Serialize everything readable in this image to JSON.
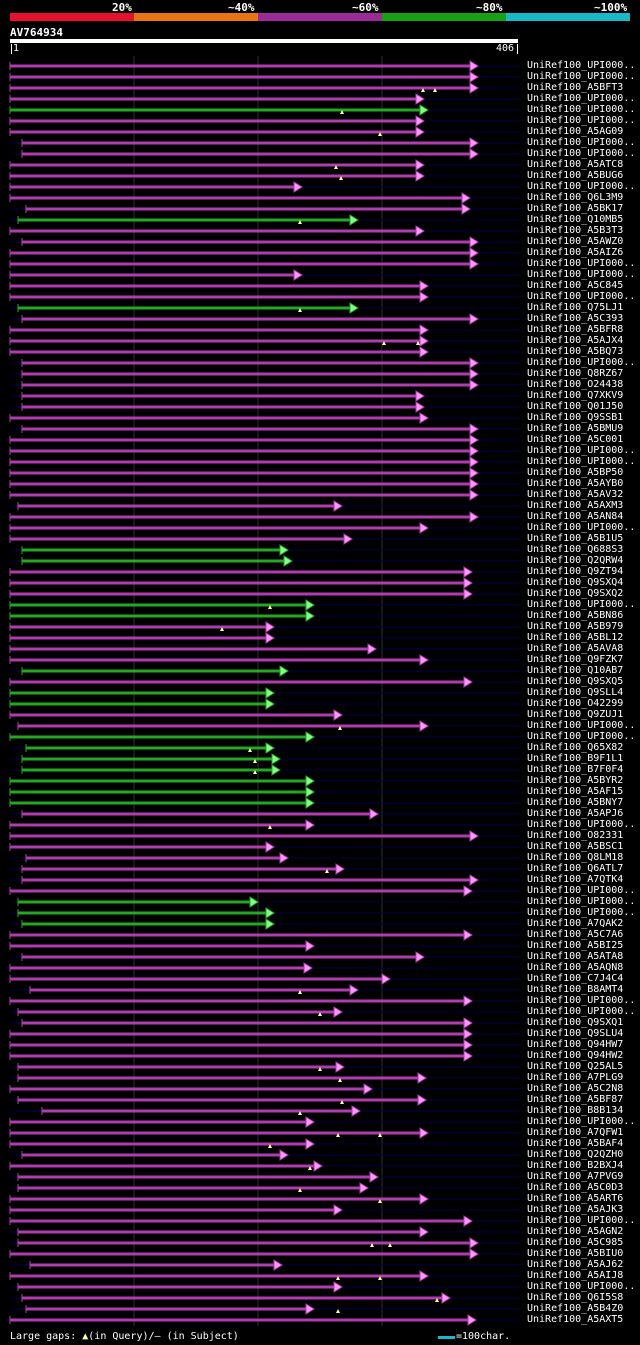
{
  "colors": {
    "background": "#000000",
    "legend": [
      "#e8112d",
      "#e87412",
      "#9b2b96",
      "#18a015",
      "#18b8c8"
    ],
    "hit_magenta": "#b03cb0",
    "hit_green": "#22a822",
    "gap": "#00004a",
    "grid": "#303030",
    "marker": "#ffff99"
  },
  "legend": {
    "pct_labels": [
      "20%",
      "~40%",
      "~60%",
      "~80%",
      "~100%"
    ]
  },
  "query": {
    "name": "AV764934",
    "start": "1",
    "end": "406"
  },
  "hits": [
    {
      "label": "UniRef100_UPI000..",
      "s": 10,
      "e": 478,
      "c": "m",
      "k": []
    },
    {
      "label": "UniRef100_UPI000..",
      "s": 10,
      "e": 478,
      "c": "m",
      "k": []
    },
    {
      "label": "UniRef100_A5BFT3",
      "s": 10,
      "e": 478,
      "c": "m",
      "k": [
        423,
        435
      ]
    },
    {
      "label": "UniRef100_UPI000..",
      "s": 10,
      "e": 424,
      "c": "m",
      "k": []
    },
    {
      "label": "UniRef100_UPI000..",
      "s": 10,
      "e": 428,
      "c": "g",
      "k": [
        342
      ]
    },
    {
      "label": "UniRef100_UPI000..",
      "s": 10,
      "e": 424,
      "c": "m",
      "k": []
    },
    {
      "label": "UniRef100_A5AG09",
      "s": 10,
      "e": 424,
      "c": "m",
      "k": [
        380
      ]
    },
    {
      "label": "UniRef100_UPI000..",
      "s": 22,
      "e": 478,
      "c": "m",
      "k": []
    },
    {
      "label": "UniRef100_UPI000..",
      "s": 22,
      "e": 478,
      "c": "m",
      "k": []
    },
    {
      "label": "UniRef100_A5ATC8",
      "s": 10,
      "e": 424,
      "c": "m",
      "k": [
        336
      ]
    },
    {
      "label": "UniRef100_A5BUG6",
      "s": 10,
      "e": 424,
      "c": "m",
      "k": [
        341
      ]
    },
    {
      "label": "UniRef100_UPI000..",
      "s": 10,
      "e": 302,
      "c": "m",
      "k": []
    },
    {
      "label": "UniRef100_Q6L3M9",
      "s": 10,
      "e": 470,
      "c": "m",
      "k": []
    },
    {
      "label": "UniRef100_A5BK17",
      "s": 26,
      "e": 470,
      "c": "m",
      "k": []
    },
    {
      "label": "UniRef100_Q10MB5",
      "s": 18,
      "e": 358,
      "c": "g",
      "k": [
        300
      ]
    },
    {
      "label": "UniRef100_A5B3T3",
      "s": 10,
      "e": 424,
      "c": "m",
      "k": []
    },
    {
      "label": "UniRef100_A5AWZ0",
      "s": 22,
      "e": 478,
      "c": "m",
      "k": []
    },
    {
      "label": "UniRef100_A5AIZ6",
      "s": 10,
      "e": 478,
      "c": "m",
      "k": []
    },
    {
      "label": "UniRef100_UPI000..",
      "s": 10,
      "e": 478,
      "c": "m",
      "k": []
    },
    {
      "label": "UniRef100_UPI000..",
      "s": 10,
      "e": 302,
      "c": "m",
      "k": []
    },
    {
      "label": "UniRef100_A5C845",
      "s": 10,
      "e": 428,
      "c": "m",
      "k": []
    },
    {
      "label": "UniRef100_UPI000..",
      "s": 10,
      "e": 428,
      "c": "m",
      "k": []
    },
    {
      "label": "UniRef100_Q75LJ1",
      "s": 18,
      "e": 358,
      "c": "g",
      "k": [
        300
      ]
    },
    {
      "label": "UniRef100_A5C393",
      "s": 22,
      "e": 478,
      "c": "m",
      "k": []
    },
    {
      "label": "UniRef100_A5BFR8",
      "s": 10,
      "e": 428,
      "c": "m",
      "k": []
    },
    {
      "label": "UniRef100_A5AJX4",
      "s": 10,
      "e": 428,
      "c": "m",
      "k": [
        384,
        418
      ]
    },
    {
      "label": "UniRef100_A5BQ73",
      "s": 10,
      "e": 428,
      "c": "m",
      "k": []
    },
    {
      "label": "UniRef100_UPI000..",
      "s": 22,
      "e": 478,
      "c": "m",
      "k": []
    },
    {
      "label": "UniRef100_Q8RZ67",
      "s": 22,
      "e": 478,
      "c": "m",
      "k": []
    },
    {
      "label": "UniRef100_O24438",
      "s": 22,
      "e": 478,
      "c": "m",
      "k": []
    },
    {
      "label": "UniRef100_Q7XKV9",
      "s": 22,
      "e": 424,
      "c": "m",
      "k": []
    },
    {
      "label": "UniRef100_Q01J50",
      "s": 22,
      "e": 424,
      "c": "m",
      "k": []
    },
    {
      "label": "UniRef100_Q9SSB1",
      "s": 10,
      "e": 428,
      "c": "m",
      "k": []
    },
    {
      "label": "UniRef100_A5BMU9",
      "s": 22,
      "e": 478,
      "c": "m",
      "k": []
    },
    {
      "label": "UniRef100_A5C001",
      "s": 10,
      "e": 478,
      "c": "m",
      "k": []
    },
    {
      "label": "UniRef100_UPI000..",
      "s": 10,
      "e": 478,
      "c": "m",
      "k": []
    },
    {
      "label": "UniRef100_UPI000..",
      "s": 10,
      "e": 478,
      "c": "m",
      "k": []
    },
    {
      "label": "UniRef100_A5BP50",
      "s": 10,
      "e": 478,
      "c": "m",
      "k": []
    },
    {
      "label": "UniRef100_A5AYB0",
      "s": 10,
      "e": 478,
      "c": "m",
      "k": []
    },
    {
      "label": "UniRef100_A5AV32",
      "s": 10,
      "e": 478,
      "c": "m",
      "k": []
    },
    {
      "label": "UniRef100_A5AXM3",
      "s": 18,
      "e": 342,
      "c": "m",
      "k": []
    },
    {
      "label": "UniRef100_A5AN84",
      "s": 10,
      "e": 478,
      "c": "m",
      "k": []
    },
    {
      "label": "UniRef100_UPI000..",
      "s": 10,
      "e": 428,
      "c": "m",
      "k": []
    },
    {
      "label": "UniRef100_A5B1U5",
      "s": 10,
      "e": 352,
      "c": "m",
      "k": []
    },
    {
      "label": "UniRef100_Q688S3",
      "s": 22,
      "e": 288,
      "c": "g",
      "k": []
    },
    {
      "label": "UniRef100_Q2QRW4",
      "s": 22,
      "e": 292,
      "c": "g",
      "k": []
    },
    {
      "label": "UniRef100_Q9ZT94",
      "s": 10,
      "e": 472,
      "c": "m",
      "k": []
    },
    {
      "label": "UniRef100_Q9SXQ4",
      "s": 10,
      "e": 472,
      "c": "m",
      "k": []
    },
    {
      "label": "UniRef100_Q9SXQ2",
      "s": 10,
      "e": 472,
      "c": "m",
      "k": []
    },
    {
      "label": "UniRef100_UPI000..",
      "s": 10,
      "e": 314,
      "c": "g",
      "k": [
        270
      ]
    },
    {
      "label": "UniRef100_A5BN86",
      "s": 10,
      "e": 314,
      "c": "g",
      "k": []
    },
    {
      "label": "UniRef100_A5B979",
      "s": 10,
      "e": 274,
      "c": "m",
      "k": [
        222
      ]
    },
    {
      "label": "UniRef100_A5BL12",
      "s": 10,
      "e": 274,
      "c": "m",
      "k": []
    },
    {
      "label": "UniRef100_A5AVA8",
      "s": 10,
      "e": 376,
      "c": "m",
      "k": []
    },
    {
      "label": "UniRef100_Q9FZK7",
      "s": 10,
      "e": 428,
      "c": "m",
      "k": []
    },
    {
      "label": "UniRef100_Q10AB7",
      "s": 22,
      "e": 288,
      "c": "g",
      "k": []
    },
    {
      "label": "UniRef100_Q9SXQ5",
      "s": 10,
      "e": 472,
      "c": "m",
      "k": []
    },
    {
      "label": "UniRef100_Q9SLL4",
      "s": 10,
      "e": 274,
      "c": "g",
      "k": []
    },
    {
      "label": "UniRef100_O42299",
      "s": 10,
      "e": 274,
      "c": "g",
      "k": []
    },
    {
      "label": "UniRef100_Q9ZUJ1",
      "s": 10,
      "e": 342,
      "c": "m",
      "k": []
    },
    {
      "label": "UniRef100_UPI000..",
      "s": 18,
      "e": 428,
      "c": "m",
      "k": [
        340
      ]
    },
    {
      "label": "UniRef100_UPI000..",
      "s": 10,
      "e": 314,
      "c": "g",
      "k": []
    },
    {
      "label": "UniRef100_Q65X82",
      "s": 26,
      "e": 274,
      "c": "g",
      "k": [
        250
      ]
    },
    {
      "label": "UniRef100_B9F1L1",
      "s": 22,
      "e": 280,
      "c": "g",
      "k": [
        255
      ]
    },
    {
      "label": "UniRef100_B7F0F4",
      "s": 22,
      "e": 280,
      "c": "g",
      "k": [
        255
      ]
    },
    {
      "label": "UniRef100_A5BYR2",
      "s": 10,
      "e": 314,
      "c": "g",
      "k": []
    },
    {
      "label": "UniRef100_A5AF15",
      "s": 10,
      "e": 314,
      "c": "g",
      "k": []
    },
    {
      "label": "UniRef100_A5BNY7",
      "s": 10,
      "e": 314,
      "c": "g",
      "k": []
    },
    {
      "label": "UniRef100_A5APJ6",
      "s": 22,
      "e": 378,
      "c": "m",
      "k": []
    },
    {
      "label": "UniRef100_UPI000..",
      "s": 10,
      "e": 314,
      "c": "m",
      "k": [
        270
      ]
    },
    {
      "label": "UniRef100_O82331",
      "s": 10,
      "e": 478,
      "c": "m",
      "k": []
    },
    {
      "label": "UniRef100_A5BSC1",
      "s": 10,
      "e": 274,
      "c": "m",
      "k": []
    },
    {
      "label": "UniRef100_Q8LM18",
      "s": 26,
      "e": 288,
      "c": "m",
      "k": []
    },
    {
      "label": "UniRef100_Q6ATL7",
      "s": 22,
      "e": 344,
      "c": "m",
      "k": [
        327
      ]
    },
    {
      "label": "UniRef100_A7QTK4",
      "s": 22,
      "e": 478,
      "c": "m",
      "k": []
    },
    {
      "label": "UniRef100_UPI000..",
      "s": 10,
      "e": 472,
      "c": "m",
      "k": []
    },
    {
      "label": "UniRef100_UPI000..",
      "s": 18,
      "e": 258,
      "c": "g",
      "k": []
    },
    {
      "label": "UniRef100_UPI000..",
      "s": 18,
      "e": 274,
      "c": "g",
      "k": []
    },
    {
      "label": "UniRef100_A7QAK2",
      "s": 22,
      "e": 274,
      "c": "g",
      "k": []
    },
    {
      "label": "UniRef100_A5C7A6",
      "s": 10,
      "e": 472,
      "c": "m",
      "k": []
    },
    {
      "label": "UniRef100_A5BI25",
      "s": 10,
      "e": 314,
      "c": "m",
      "k": []
    },
    {
      "label": "UniRef100_A5ATA8",
      "s": 22,
      "e": 424,
      "c": "m",
      "k": []
    },
    {
      "label": "UniRef100_A5AQN8",
      "s": 10,
      "e": 312,
      "c": "m",
      "k": []
    },
    {
      "label": "UniRef100_C7J4C4",
      "s": 10,
      "e": 390,
      "c": "m",
      "k": []
    },
    {
      "label": "UniRef100_B8AMT4",
      "s": 30,
      "e": 358,
      "c": "m",
      "k": [
        300
      ]
    },
    {
      "label": "UniRef100_UPI000..",
      "s": 10,
      "e": 472,
      "c": "m",
      "k": []
    },
    {
      "label": "UniRef100_UPI000..",
      "s": 18,
      "e": 342,
      "c": "m",
      "k": [
        320
      ]
    },
    {
      "label": "UniRef100_Q9SXQ1",
      "s": 22,
      "e": 472,
      "c": "m",
      "k": []
    },
    {
      "label": "UniRef100_Q9SLU4",
      "s": 10,
      "e": 472,
      "c": "m",
      "k": []
    },
    {
      "label": "UniRef100_Q94HW7",
      "s": 10,
      "e": 472,
      "c": "m",
      "k": []
    },
    {
      "label": "UniRef100_Q94HW2",
      "s": 10,
      "e": 472,
      "c": "m",
      "k": []
    },
    {
      "label": "UniRef100_Q25AL5",
      "s": 18,
      "e": 344,
      "c": "m",
      "k": [
        320
      ]
    },
    {
      "label": "UniRef100_A7PLG9",
      "s": 18,
      "e": 426,
      "c": "m",
      "k": [
        340
      ]
    },
    {
      "label": "UniRef100_A5C2N8",
      "s": 10,
      "e": 372,
      "c": "m",
      "k": []
    },
    {
      "label": "UniRef100_A5BF87",
      "s": 18,
      "e": 426,
      "c": "m",
      "k": [
        342
      ]
    },
    {
      "label": "UniRef100_B8B134",
      "s": 42,
      "e": 360,
      "c": "m",
      "k": [
        300
      ]
    },
    {
      "label": "UniRef100_UPI000..",
      "s": 10,
      "e": 314,
      "c": "m",
      "k": []
    },
    {
      "label": "UniRef100_A7QFW1",
      "s": 10,
      "e": 428,
      "c": "m",
      "k": [
        338,
        380
      ]
    },
    {
      "label": "UniRef100_A5BAF4",
      "s": 10,
      "e": 314,
      "c": "m",
      "k": [
        270
      ]
    },
    {
      "label": "UniRef100_Q2QZH0",
      "s": 22,
      "e": 288,
      "c": "m",
      "k": []
    },
    {
      "label": "UniRef100_B2BXJ4",
      "s": 10,
      "e": 322,
      "c": "m",
      "k": [
        310
      ]
    },
    {
      "label": "UniRef100_A7PVG9",
      "s": 18,
      "e": 378,
      "c": "m",
      "k": []
    },
    {
      "label": "UniRef100_A5C0D3",
      "s": 18,
      "e": 368,
      "c": "m",
      "k": [
        300
      ]
    },
    {
      "label": "UniRef100_A5ART6",
      "s": 10,
      "e": 428,
      "c": "m",
      "k": [
        380
      ]
    },
    {
      "label": "UniRef100_A5AJK3",
      "s": 10,
      "e": 342,
      "c": "m",
      "k": []
    },
    {
      "label": "UniRef100_UPI000..",
      "s": 10,
      "e": 472,
      "c": "m",
      "k": []
    },
    {
      "label": "UniRef100_A5AGN2",
      "s": 18,
      "e": 428,
      "c": "m",
      "k": []
    },
    {
      "label": "UniRef100_A5C985",
      "s": 18,
      "e": 478,
      "c": "m",
      "k": [
        372,
        390
      ]
    },
    {
      "label": "UniRef100_A5BIU0",
      "s": 10,
      "e": 478,
      "c": "m",
      "k": []
    },
    {
      "label": "UniRef100_A5AJ62",
      "s": 30,
      "e": 282,
      "c": "m",
      "k": []
    },
    {
      "label": "UniRef100_A5AIJ8",
      "s": 10,
      "e": 428,
      "c": "m",
      "k": [
        338,
        380
      ]
    },
    {
      "label": "UniRef100_UPI000..",
      "s": 18,
      "e": 342,
      "c": "m",
      "k": []
    },
    {
      "label": "UniRef100_Q6I5S8",
      "s": 22,
      "e": 450,
      "c": "m",
      "k": [
        437
      ]
    },
    {
      "label": "UniRef100_A5B4Z0",
      "s": 26,
      "e": 314,
      "c": "m",
      "k": [
        338
      ]
    },
    {
      "label": "UniRef100_A5AXT5",
      "s": 10,
      "e": 476,
      "c": "m",
      "k": []
    }
  ],
  "footer": {
    "gaps_label": "Large gaps: ",
    "in_query": "(in Query)/",
    "dash": "—",
    "in_subject": " (in Subject)",
    "scale_label": "=100char."
  }
}
